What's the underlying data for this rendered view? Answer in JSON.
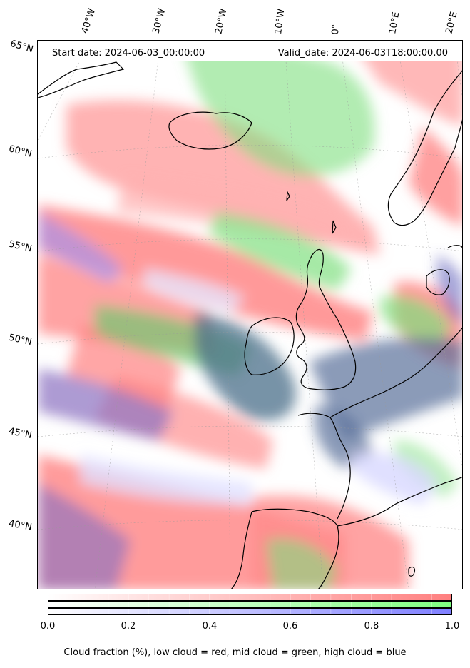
{
  "map": {
    "start_date": "Start date: 2024-06-03_00:00:00",
    "valid_date": "Valid_date: 2024-06-03T18:00:00.00",
    "lon_labels": [
      "40°W",
      "30°W",
      "20°W",
      "10°W",
      "0°",
      "10°E",
      "20°E"
    ],
    "lat_labels": [
      "65°N",
      "60°N",
      "55°N",
      "50°N",
      "45°N",
      "40°N"
    ],
    "cloud_colors": {
      "low": "#ff7f7f",
      "mid": "#7fff7f",
      "high": "#7f7fff"
    }
  },
  "colorbar": {
    "ticks": [
      "0.0",
      "0.2",
      "0.4",
      "0.6",
      "0.8",
      "1.0"
    ],
    "caption": "Cloud fraction (%), low cloud = red, mid cloud = green, high cloud = blue",
    "range": [
      0,
      1
    ]
  }
}
